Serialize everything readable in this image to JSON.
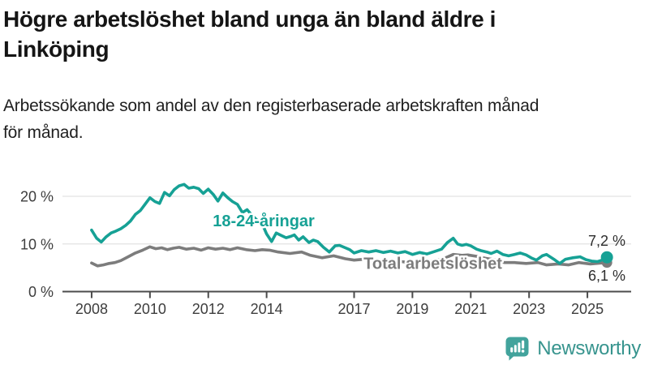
{
  "title": {
    "line1": "Högre arbetslöshet bland unga än bland äldre i",
    "line2": "Linköping",
    "full": "Högre arbetslöshet bland unga än bland äldre i Linköping"
  },
  "subtitle": {
    "line1": "Arbetssökande som andel av den registerbaserade arbetskraften månad",
    "line2": "för månad.",
    "full": "Arbetssökande som andel av den registerbaserade arbetskraften månad för månad."
  },
  "footer": {
    "brand": "Newsworthy",
    "logo_icon": "bar-chart-speech-bubble-icon"
  },
  "chart_data": {
    "type": "line",
    "title": "",
    "xlabel": "",
    "ylabel": "",
    "x_unit": "year (monthly share of workforce)",
    "xlim": [
      2007.0,
      2026.5
    ],
    "ylim": [
      0,
      24
    ],
    "grid": "horizontal",
    "legend_position": "inline-labels",
    "yticks": [
      {
        "value": 0,
        "label": "0 %"
      },
      {
        "value": 10,
        "label": "10 %"
      },
      {
        "value": 20,
        "label": "20 %"
      }
    ],
    "xticks": [
      {
        "value": 2008,
        "label": "2008"
      },
      {
        "value": 2010,
        "label": "2010"
      },
      {
        "value": 2012,
        "label": "2012"
      },
      {
        "value": 2014,
        "label": "2014"
      },
      {
        "value": 2017,
        "label": "2017"
      },
      {
        "value": 2019,
        "label": "2019"
      },
      {
        "value": 2021,
        "label": "2021"
      },
      {
        "value": 2023,
        "label": "2023"
      },
      {
        "value": 2025,
        "label": "2025"
      }
    ],
    "colors": {
      "youth": "#16a195",
      "total": "#7c7c7c"
    },
    "series": [
      {
        "name": "18-24-åringar",
        "color": "#16a195",
        "end_label": "7,2 %",
        "end_value": 7.2,
        "label_x": 2013.9,
        "label_y": 14.9,
        "points": [
          [
            2008.0,
            12.9
          ],
          [
            2008.17,
            11.2
          ],
          [
            2008.33,
            10.4
          ],
          [
            2008.5,
            11.5
          ],
          [
            2008.67,
            12.3
          ],
          [
            2008.83,
            12.7
          ],
          [
            2009.0,
            13.2
          ],
          [
            2009.17,
            13.9
          ],
          [
            2009.33,
            14.8
          ],
          [
            2009.5,
            16.2
          ],
          [
            2009.67,
            17.0
          ],
          [
            2009.83,
            18.3
          ],
          [
            2010.0,
            19.7
          ],
          [
            2010.17,
            18.9
          ],
          [
            2010.33,
            18.5
          ],
          [
            2010.5,
            20.8
          ],
          [
            2010.67,
            20.1
          ],
          [
            2010.83,
            21.4
          ],
          [
            2011.0,
            22.2
          ],
          [
            2011.17,
            22.5
          ],
          [
            2011.33,
            21.7
          ],
          [
            2011.5,
            21.9
          ],
          [
            2011.67,
            21.6
          ],
          [
            2011.83,
            20.6
          ],
          [
            2012.0,
            21.5
          ],
          [
            2012.17,
            20.4
          ],
          [
            2012.33,
            19.0
          ],
          [
            2012.5,
            20.7
          ],
          [
            2012.67,
            19.7
          ],
          [
            2012.83,
            18.9
          ],
          [
            2013.0,
            18.3
          ],
          [
            2013.17,
            16.6
          ],
          [
            2013.33,
            17.2
          ],
          [
            2013.5,
            16.0
          ],
          [
            2013.67,
            15.0
          ],
          [
            2013.83,
            14.5
          ],
          [
            2014.0,
            12.1
          ],
          [
            2014.17,
            10.5
          ],
          [
            2014.33,
            12.3
          ],
          [
            2014.5,
            11.8
          ],
          [
            2014.67,
            11.3
          ],
          [
            2014.83,
            11.6
          ],
          [
            2014.95,
            11.9
          ],
          [
            2015.1,
            10.8
          ],
          [
            2015.25,
            11.5
          ],
          [
            2015.45,
            10.3
          ],
          [
            2015.6,
            10.8
          ],
          [
            2015.75,
            10.5
          ],
          [
            2015.95,
            9.3
          ],
          [
            2016.15,
            8.3
          ],
          [
            2016.35,
            9.6
          ],
          [
            2016.5,
            9.7
          ],
          [
            2016.7,
            9.2
          ],
          [
            2016.85,
            8.8
          ],
          [
            2017.0,
            8.1
          ],
          [
            2017.25,
            8.6
          ],
          [
            2017.5,
            8.3
          ],
          [
            2017.75,
            8.6
          ],
          [
            2018.0,
            8.2
          ],
          [
            2018.25,
            8.5
          ],
          [
            2018.5,
            8.1
          ],
          [
            2018.75,
            8.4
          ],
          [
            2019.0,
            7.8
          ],
          [
            2019.25,
            8.2
          ],
          [
            2019.5,
            7.9
          ],
          [
            2019.75,
            8.4
          ],
          [
            2020.0,
            8.9
          ],
          [
            2020.2,
            10.3
          ],
          [
            2020.4,
            11.2
          ],
          [
            2020.55,
            10.0
          ],
          [
            2020.7,
            9.7
          ],
          [
            2020.85,
            9.9
          ],
          [
            2021.0,
            9.6
          ],
          [
            2021.2,
            8.9
          ],
          [
            2021.35,
            8.6
          ],
          [
            2021.55,
            8.3
          ],
          [
            2021.7,
            8.0
          ],
          [
            2021.9,
            8.5
          ],
          [
            2022.1,
            7.8
          ],
          [
            2022.3,
            7.5
          ],
          [
            2022.5,
            7.8
          ],
          [
            2022.7,
            8.1
          ],
          [
            2022.9,
            7.7
          ],
          [
            2023.1,
            7.0
          ],
          [
            2023.25,
            6.6
          ],
          [
            2023.45,
            7.5
          ],
          [
            2023.6,
            7.8
          ],
          [
            2023.85,
            6.8
          ],
          [
            2024.05,
            5.9
          ],
          [
            2024.25,
            6.8
          ],
          [
            2024.5,
            7.1
          ],
          [
            2024.75,
            7.3
          ],
          [
            2024.95,
            6.7
          ],
          [
            2025.15,
            6.4
          ],
          [
            2025.35,
            6.3
          ],
          [
            2025.5,
            6.6
          ],
          [
            2025.67,
            7.2
          ]
        ]
      },
      {
        "name": "Total arbetslöshet",
        "color": "#7c7c7c",
        "end_label": "6,1 %",
        "end_value": 6.1,
        "label_x": 2019.7,
        "label_y": 6.0,
        "points": [
          [
            2008.0,
            6.0
          ],
          [
            2008.2,
            5.4
          ],
          [
            2008.4,
            5.6
          ],
          [
            2008.6,
            5.9
          ],
          [
            2008.8,
            6.1
          ],
          [
            2009.0,
            6.5
          ],
          [
            2009.25,
            7.3
          ],
          [
            2009.5,
            8.1
          ],
          [
            2009.75,
            8.7
          ],
          [
            2010.0,
            9.4
          ],
          [
            2010.2,
            9.0
          ],
          [
            2010.4,
            9.2
          ],
          [
            2010.6,
            8.8
          ],
          [
            2010.8,
            9.1
          ],
          [
            2011.0,
            9.3
          ],
          [
            2011.25,
            8.9
          ],
          [
            2011.5,
            9.1
          ],
          [
            2011.75,
            8.7
          ],
          [
            2012.0,
            9.2
          ],
          [
            2012.25,
            8.9
          ],
          [
            2012.5,
            9.1
          ],
          [
            2012.75,
            8.8
          ],
          [
            2013.0,
            9.2
          ],
          [
            2013.3,
            8.8
          ],
          [
            2013.6,
            8.6
          ],
          [
            2013.85,
            8.8
          ],
          [
            2014.1,
            8.7
          ],
          [
            2014.4,
            8.3
          ],
          [
            2014.8,
            8.0
          ],
          [
            2015.2,
            8.3
          ],
          [
            2015.5,
            7.6
          ],
          [
            2015.9,
            7.1
          ],
          [
            2016.3,
            7.5
          ],
          [
            2016.7,
            6.9
          ],
          [
            2017.0,
            6.6
          ],
          [
            2017.35,
            6.8
          ],
          [
            2017.7,
            6.5
          ],
          [
            2018.05,
            6.3
          ],
          [
            2018.4,
            6.5
          ],
          [
            2018.75,
            6.2
          ],
          [
            2019.1,
            6.1
          ],
          [
            2019.45,
            6.3
          ],
          [
            2019.8,
            6.5
          ],
          [
            2020.1,
            7.0
          ],
          [
            2020.4,
            7.8
          ],
          [
            2020.7,
            7.6
          ],
          [
            2020.9,
            7.7
          ],
          [
            2021.2,
            7.4
          ],
          [
            2021.5,
            7.0
          ],
          [
            2021.8,
            6.7
          ],
          [
            2022.15,
            6.1
          ],
          [
            2022.5,
            6.1
          ],
          [
            2022.9,
            5.9
          ],
          [
            2023.3,
            6.1
          ],
          [
            2023.6,
            5.6
          ],
          [
            2024.0,
            5.8
          ],
          [
            2024.35,
            5.6
          ],
          [
            2024.7,
            6.1
          ],
          [
            2025.1,
            5.8
          ],
          [
            2025.45,
            6.0
          ],
          [
            2025.67,
            6.1
          ]
        ]
      }
    ]
  }
}
